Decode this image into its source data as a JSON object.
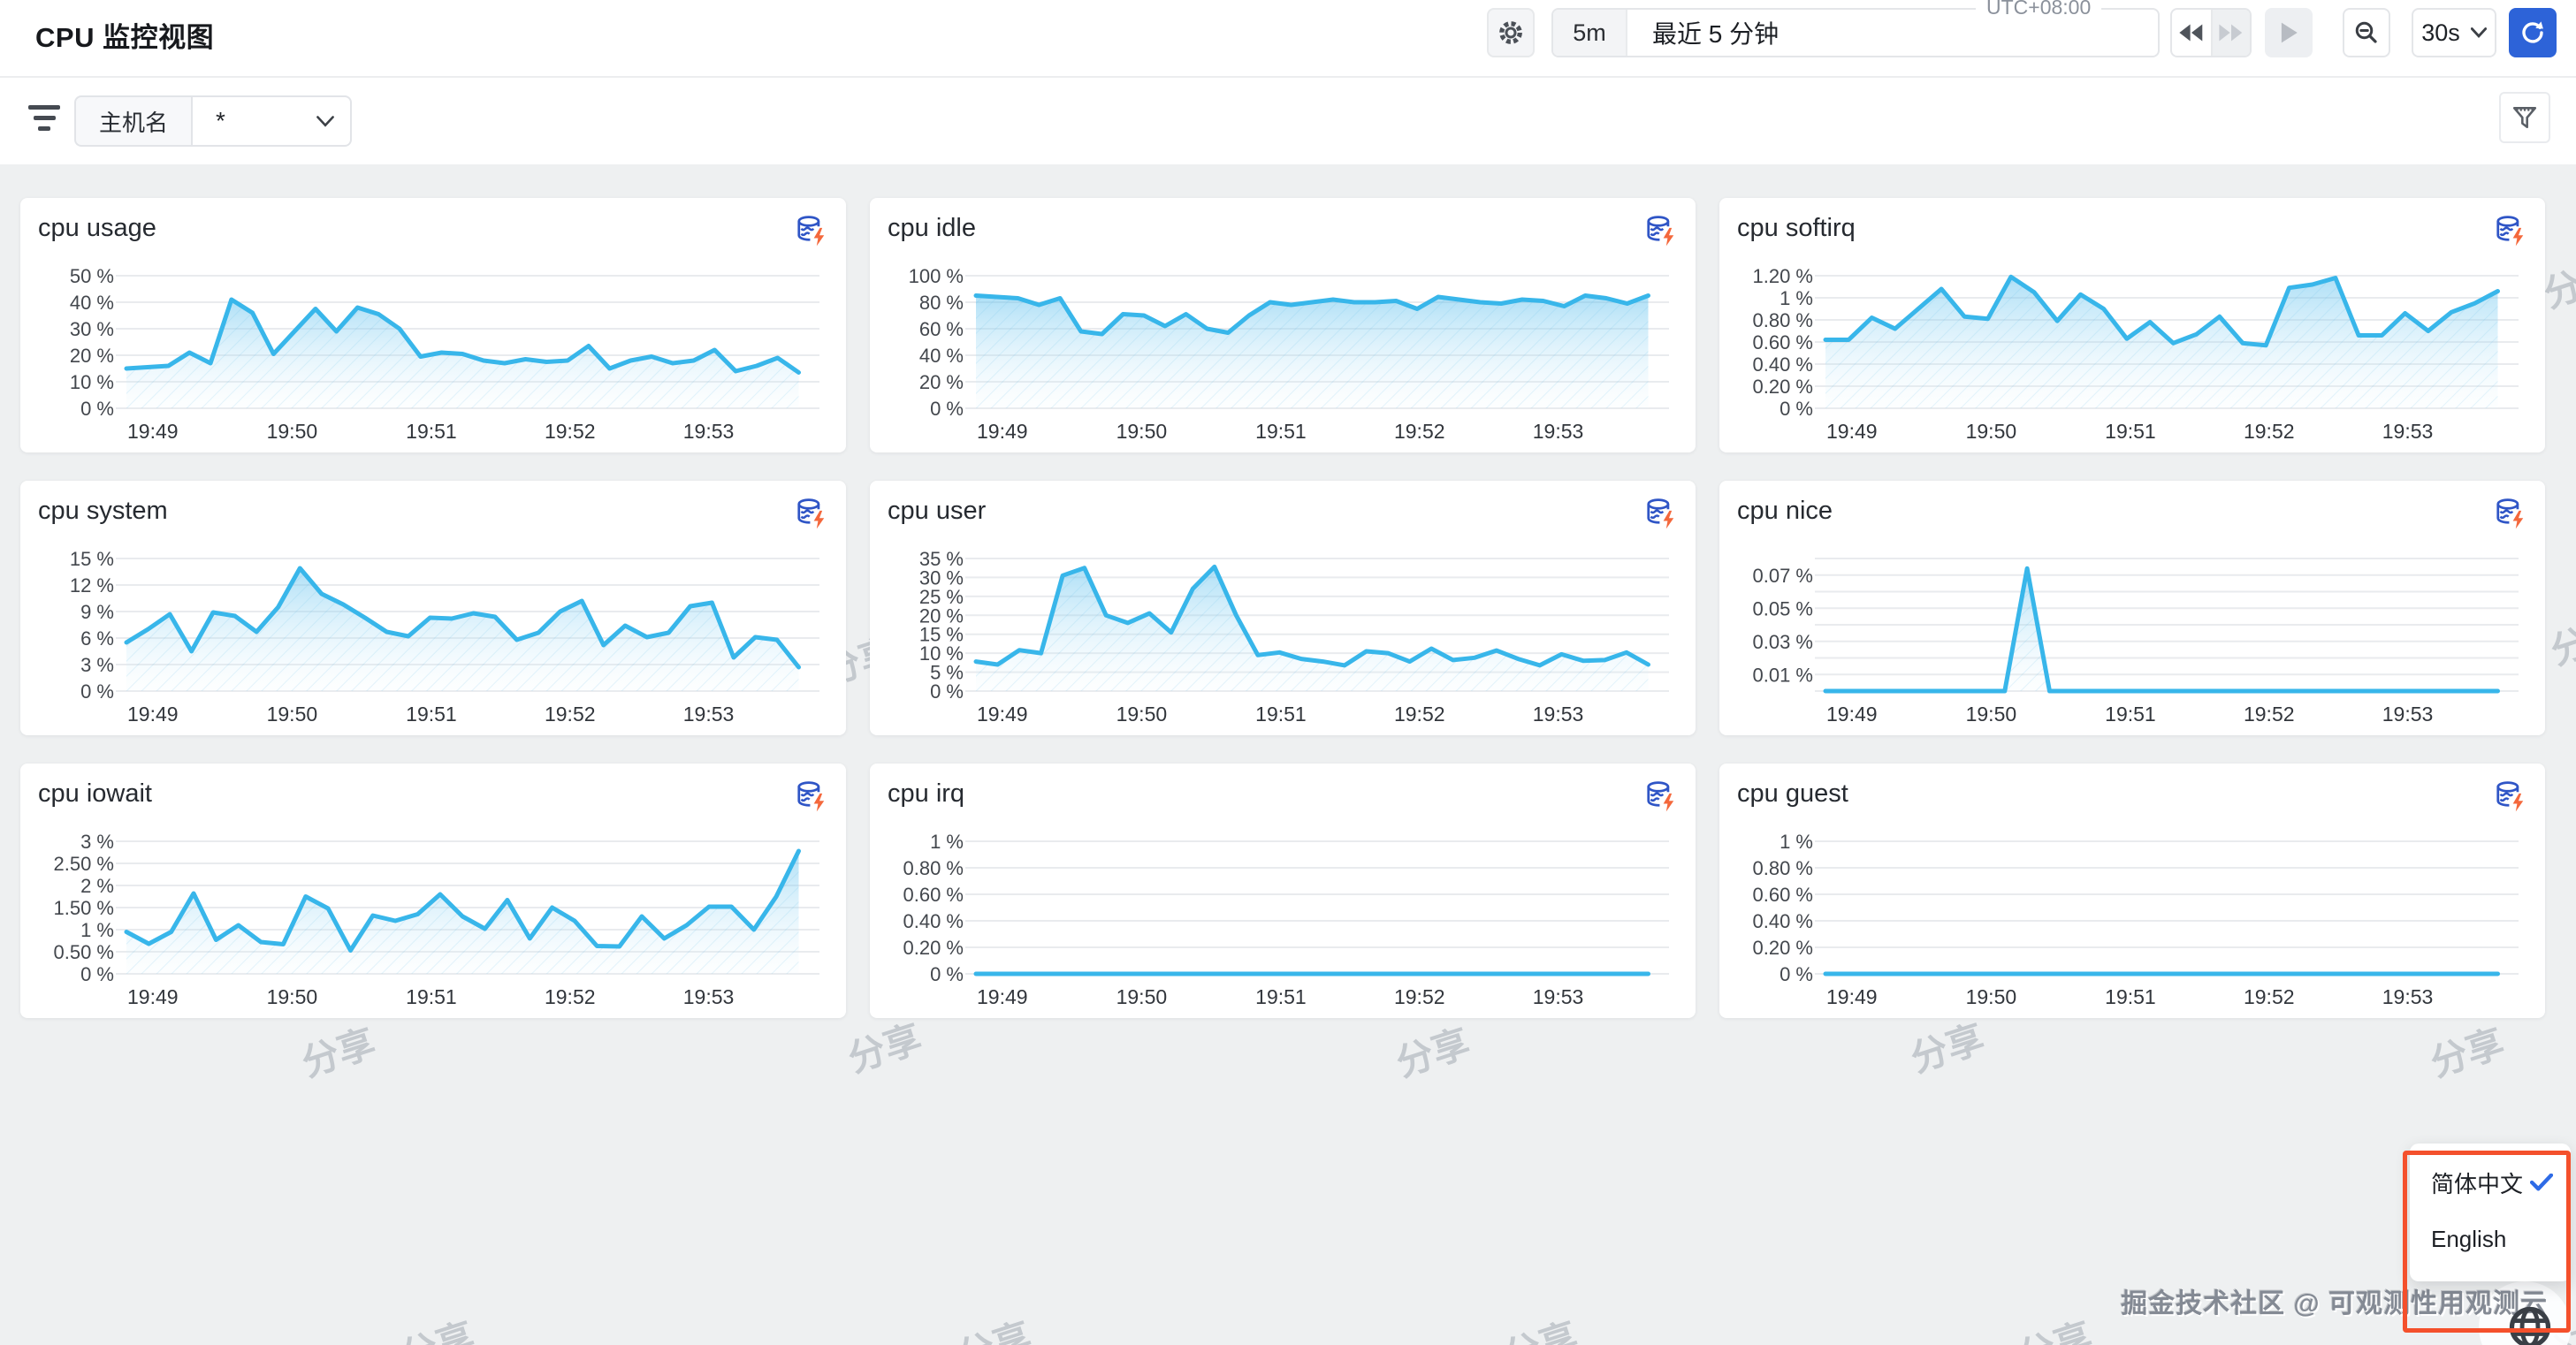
{
  "header": {
    "title": "CPU 监控视图",
    "range_chip": "5m",
    "range_label": "最近 5 分钟",
    "timezone": "UTC+08:00",
    "refresh_interval": "30s"
  },
  "filter_bar": {
    "field_label": "主机名",
    "field_value": "*"
  },
  "language_menu": {
    "items": [
      {
        "label": "简体中文",
        "selected": true
      },
      {
        "label": "English",
        "selected": false
      }
    ]
  },
  "watermark": {
    "stamp": "分享",
    "credit": "掘金技术社区 @ 可观测性用观测云"
  },
  "colors": {
    "accent_blue": "#2d63d8",
    "chart_line": "#38b6ea",
    "annotation_red": "#f4502c",
    "check_blue": "#2e6be6",
    "panel_icon_blue": "#2f55c6",
    "panel_icon_orange": "#f4683c"
  },
  "chart_data": [
    {
      "type": "area",
      "title": "cpu usage",
      "unit": "%",
      "x_labels": [
        "19:49",
        "19:50",
        "19:51",
        "19:52",
        "19:53"
      ],
      "yticks": [
        {
          "value": 0,
          "label": "0 %"
        },
        {
          "value": 10,
          "label": "10 %"
        },
        {
          "value": 20,
          "label": "20 %"
        },
        {
          "value": 30,
          "label": "30 %"
        },
        {
          "value": 40,
          "label": "40 %"
        },
        {
          "value": 50,
          "label": "50 %"
        }
      ],
      "grid_extra": [],
      "ymax": 50,
      "values": [
        15,
        15.5,
        16,
        21,
        17,
        41,
        36,
        20.5,
        29,
        37.5,
        29,
        38,
        35.5,
        30,
        19.5,
        21,
        20.5,
        18,
        17,
        18.5,
        17.5,
        18,
        23.5,
        15,
        18,
        19.5,
        17,
        18,
        22,
        14,
        16,
        19,
        13.5
      ]
    },
    {
      "type": "area",
      "title": "cpu idle",
      "unit": "%",
      "x_labels": [
        "19:49",
        "19:50",
        "19:51",
        "19:52",
        "19:53"
      ],
      "yticks": [
        {
          "value": 0,
          "label": "0 %"
        },
        {
          "value": 20,
          "label": "20 %"
        },
        {
          "value": 40,
          "label": "40 %"
        },
        {
          "value": 60,
          "label": "60 %"
        },
        {
          "value": 80,
          "label": "80 %"
        },
        {
          "value": 100,
          "label": "100 %"
        }
      ],
      "grid_extra": [],
      "ymax": 100,
      "values": [
        85,
        84,
        83,
        78,
        83,
        58,
        56,
        71,
        70,
        62,
        71,
        60,
        57,
        70,
        80,
        78,
        80,
        82,
        80,
        80,
        81,
        75,
        84,
        82,
        80,
        79,
        82,
        81,
        77,
        85,
        83,
        79,
        85
      ]
    },
    {
      "type": "area",
      "title": "cpu softirq",
      "unit": "%",
      "x_labels": [
        "19:49",
        "19:50",
        "19:51",
        "19:52",
        "19:53"
      ],
      "yticks": [
        {
          "value": 0,
          "label": "0 %"
        },
        {
          "value": 0.2,
          "label": "0.20 %"
        },
        {
          "value": 0.4,
          "label": "0.40 %"
        },
        {
          "value": 0.6,
          "label": "0.60 %"
        },
        {
          "value": 0.8,
          "label": "0.80 %"
        },
        {
          "value": 1,
          "label": "1 %"
        },
        {
          "value": 1.2,
          "label": "1.20 %"
        }
      ],
      "grid_extra": [],
      "ymax": 1.2,
      "values": [
        0.62,
        0.62,
        0.82,
        0.72,
        0.9,
        1.08,
        0.83,
        0.81,
        1.19,
        1.05,
        0.79,
        1.03,
        0.9,
        0.63,
        0.78,
        0.59,
        0.67,
        0.83,
        0.59,
        0.57,
        1.09,
        1.12,
        1.18,
        0.66,
        0.66,
        0.86,
        0.7,
        0.87,
        0.95,
        1.06
      ]
    },
    {
      "type": "area",
      "title": "cpu system",
      "unit": "%",
      "x_labels": [
        "19:49",
        "19:50",
        "19:51",
        "19:52",
        "19:53"
      ],
      "yticks": [
        {
          "value": 0,
          "label": "0 %"
        },
        {
          "value": 3,
          "label": "3 %"
        },
        {
          "value": 6,
          "label": "6 %"
        },
        {
          "value": 9,
          "label": "9 %"
        },
        {
          "value": 12,
          "label": "12 %"
        },
        {
          "value": 15,
          "label": "15 %"
        }
      ],
      "grid_extra": [],
      "ymax": 15,
      "values": [
        5.5,
        7,
        8.7,
        4.5,
        8.9,
        8.5,
        6.7,
        9.5,
        13.9,
        11,
        9.8,
        8.3,
        6.7,
        6.2,
        8.3,
        8.2,
        8.8,
        8.4,
        5.8,
        6.6,
        9,
        10.2,
        5.2,
        7.4,
        6.1,
        6.6,
        9.6,
        10,
        3.8,
        6.1,
        5.8,
        2.7
      ]
    },
    {
      "type": "area",
      "title": "cpu user",
      "unit": "%",
      "x_labels": [
        "19:49",
        "19:50",
        "19:51",
        "19:52",
        "19:53"
      ],
      "yticks": [
        {
          "value": 0,
          "label": "0 %"
        },
        {
          "value": 5,
          "label": "5 %"
        },
        {
          "value": 10,
          "label": "10 %"
        },
        {
          "value": 15,
          "label": "15 %"
        },
        {
          "value": 20,
          "label": "20 %"
        },
        {
          "value": 25,
          "label": "25 %"
        },
        {
          "value": 30,
          "label": "30 %"
        },
        {
          "value": 35,
          "label": "35 %"
        }
      ],
      "grid_extra": [],
      "ymax": 35,
      "values": [
        7.8,
        7,
        10.8,
        10,
        30.5,
        32.5,
        20,
        18,
        20.5,
        15.5,
        27,
        32.8,
        20,
        9.5,
        10.2,
        8.5,
        7.8,
        6.8,
        10.5,
        10,
        7.8,
        11.2,
        8.2,
        8.8,
        10.7,
        8.5,
        6.8,
        9.7,
        8,
        8.2,
        10.2,
        7
      ]
    },
    {
      "type": "area",
      "title": "cpu nice",
      "unit": "%",
      "x_labels": [
        "19:49",
        "19:50",
        "19:51",
        "19:52",
        "19:53"
      ],
      "yticks": [
        {
          "value": 0.01,
          "label": "0.01 %"
        },
        {
          "value": 0.03,
          "label": "0.03 %"
        },
        {
          "value": 0.05,
          "label": "0.05 %"
        },
        {
          "value": 0.07,
          "label": "0.07 %"
        }
      ],
      "grid_extra": [
        0,
        0.02,
        0.04,
        0.06,
        0.08
      ],
      "ymax": 0.08,
      "values": [
        0,
        0,
        0,
        0,
        0,
        0,
        0,
        0,
        0,
        0.074,
        0,
        0,
        0,
        0,
        0,
        0,
        0,
        0,
        0,
        0,
        0,
        0,
        0,
        0,
        0,
        0,
        0,
        0,
        0,
        0,
        0
      ]
    },
    {
      "type": "area",
      "title": "cpu iowait",
      "unit": "%",
      "x_labels": [
        "19:49",
        "19:50",
        "19:51",
        "19:52",
        "19:53"
      ],
      "yticks": [
        {
          "value": 0,
          "label": "0 %"
        },
        {
          "value": 0.5,
          "label": "0.50 %"
        },
        {
          "value": 1,
          "label": "1 %"
        },
        {
          "value": 1.5,
          "label": "1.50 %"
        },
        {
          "value": 2,
          "label": "2 %"
        },
        {
          "value": 2.5,
          "label": "2.50 %"
        },
        {
          "value": 3,
          "label": "3 %"
        }
      ],
      "grid_extra": [],
      "ymax": 3,
      "values": [
        0.95,
        0.68,
        0.95,
        1.82,
        0.77,
        1.1,
        0.72,
        0.67,
        1.75,
        1.48,
        0.53,
        1.32,
        1.2,
        1.35,
        1.8,
        1.3,
        1.02,
        1.67,
        0.8,
        1.5,
        1.2,
        0.63,
        0.62,
        1.3,
        0.8,
        1.1,
        1.52,
        1.52,
        1.0,
        1.75,
        2.78
      ]
    },
    {
      "type": "area",
      "title": "cpu irq",
      "unit": "%",
      "x_labels": [
        "19:49",
        "19:50",
        "19:51",
        "19:52",
        "19:53"
      ],
      "yticks": [
        {
          "value": 0,
          "label": "0 %"
        },
        {
          "value": 0.2,
          "label": "0.20 %"
        },
        {
          "value": 0.4,
          "label": "0.40 %"
        },
        {
          "value": 0.6,
          "label": "0.60 %"
        },
        {
          "value": 0.8,
          "label": "0.80 %"
        },
        {
          "value": 1,
          "label": "1 %"
        }
      ],
      "grid_extra": [],
      "ymax": 1,
      "values": [
        0,
        0,
        0,
        0,
        0,
        0,
        0,
        0,
        0,
        0,
        0,
        0,
        0,
        0,
        0,
        0,
        0,
        0,
        0,
        0,
        0,
        0,
        0,
        0,
        0,
        0,
        0,
        0,
        0,
        0,
        0
      ]
    },
    {
      "type": "area",
      "title": "cpu guest",
      "unit": "%",
      "x_labels": [
        "19:49",
        "19:50",
        "19:51",
        "19:52",
        "19:53"
      ],
      "yticks": [
        {
          "value": 0,
          "label": "0 %"
        },
        {
          "value": 0.2,
          "label": "0.20 %"
        },
        {
          "value": 0.4,
          "label": "0.40 %"
        },
        {
          "value": 0.6,
          "label": "0.60 %"
        },
        {
          "value": 0.8,
          "label": "0.80 %"
        },
        {
          "value": 1,
          "label": "1 %"
        }
      ],
      "grid_extra": [],
      "ymax": 1,
      "values": [
        0,
        0,
        0,
        0,
        0,
        0,
        0,
        0,
        0,
        0,
        0,
        0,
        0,
        0,
        0,
        0,
        0,
        0,
        0,
        0,
        0,
        0,
        0,
        0,
        0,
        0,
        0,
        0,
        0,
        0,
        0
      ]
    }
  ]
}
